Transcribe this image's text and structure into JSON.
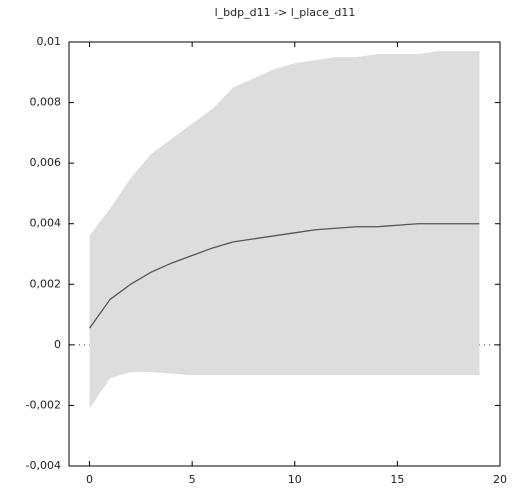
{
  "chart_data": {
    "type": "line",
    "title": "l_bdp_d11 -> l_place_d11",
    "x": [
      0,
      1,
      2,
      3,
      4,
      5,
      6,
      7,
      8,
      9,
      10,
      11,
      12,
      13,
      14,
      15,
      16,
      17,
      18,
      19
    ],
    "values": [
      0.00055,
      0.0015,
      0.002,
      0.0024,
      0.0027,
      0.00295,
      0.0032,
      0.0034,
      0.0035,
      0.0036,
      0.0037,
      0.0038,
      0.00385,
      0.0039,
      0.0039,
      0.00395,
      0.004,
      0.004,
      0.004,
      0.004
    ],
    "color": "#555555",
    "band": {
      "upper": [
        0.0036,
        0.0045,
        0.0055,
        0.0063,
        0.0068,
        0.0073,
        0.0078,
        0.0085,
        0.0088,
        0.0091,
        0.0093,
        0.0094,
        0.0095,
        0.0095,
        0.0096,
        0.0096,
        0.0096,
        0.0097,
        0.0097,
        0.0097
      ],
      "lower": [
        -0.0021,
        -0.0011,
        -0.0009,
        -0.0009,
        -0.00095,
        -0.001,
        -0.001,
        -0.001,
        -0.001,
        -0.001,
        -0.001,
        -0.001,
        -0.001,
        -0.001,
        -0.001,
        -0.001,
        -0.001,
        -0.001,
        -0.001,
        -0.001
      ],
      "color": "#dddddd"
    },
    "xlim": [
      -1,
      20
    ],
    "xticks": [
      0,
      5,
      10,
      15,
      20
    ],
    "ylim": [
      -0.004,
      0.01
    ],
    "yticks": [
      {
        "value": -0.004,
        "label": "-0,004"
      },
      {
        "value": -0.002,
        "label": "-0,002"
      },
      0,
      {
        "value": 0.002,
        "label": "0,002"
      },
      {
        "value": 0.004,
        "label": "0,004"
      },
      {
        "value": 0.006,
        "label": "0,006"
      },
      {
        "value": 0.008,
        "label": "0,008"
      },
      {
        "value": 0.01,
        "label": "0,01"
      }
    ]
  }
}
